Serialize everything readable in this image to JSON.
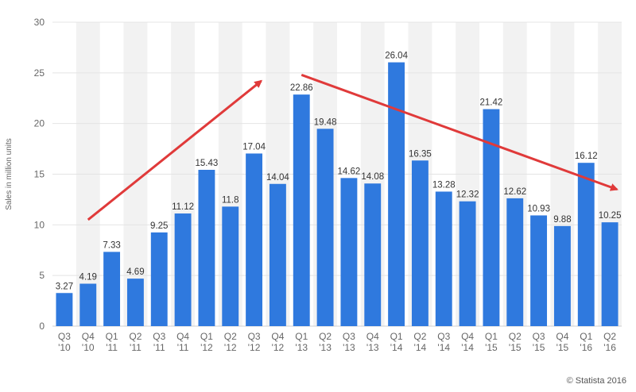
{
  "chart_data": {
    "type": "bar",
    "categories": [
      [
        "Q3",
        "'10"
      ],
      [
        "Q4",
        "'10"
      ],
      [
        "Q1",
        "'11"
      ],
      [
        "Q2",
        "'11"
      ],
      [
        "Q3",
        "'11"
      ],
      [
        "Q4",
        "'11"
      ],
      [
        "Q1",
        "'12"
      ],
      [
        "Q2",
        "'12"
      ],
      [
        "Q3",
        "'12"
      ],
      [
        "Q4",
        "'12"
      ],
      [
        "Q1",
        "'13"
      ],
      [
        "Q2",
        "'13"
      ],
      [
        "Q3",
        "'13"
      ],
      [
        "Q4",
        "'13"
      ],
      [
        "Q1",
        "'14"
      ],
      [
        "Q2",
        "'14"
      ],
      [
        "Q3",
        "'14"
      ],
      [
        "Q4",
        "'14"
      ],
      [
        "Q1",
        "'15"
      ],
      [
        "Q2",
        "'15"
      ],
      [
        "Q3",
        "'15"
      ],
      [
        "Q4",
        "'15"
      ],
      [
        "Q1",
        "'16"
      ],
      [
        "Q2",
        "'16"
      ]
    ],
    "values": [
      3.27,
      4.19,
      7.33,
      4.69,
      9.25,
      11.12,
      15.43,
      11.8,
      17.04,
      14.04,
      22.86,
      19.48,
      14.62,
      14.08,
      26.04,
      16.35,
      13.28,
      12.32,
      21.42,
      12.62,
      10.93,
      9.88,
      16.12,
      10.25
    ],
    "value_labels": [
      "3.27",
      "4.19",
      "7.33",
      "4.69",
      "9.25",
      "11.12",
      "15.43",
      "11.8",
      "17.04",
      "14.04",
      "22.86",
      "19.48",
      "14.62",
      "14.08",
      "26.04",
      "16.35",
      "13.28",
      "12.32",
      "21.42",
      "12.62",
      "10.93",
      "9.88",
      "16.12",
      "10.25"
    ],
    "ylabel": "Sales in million units",
    "ylim": [
      0,
      30
    ],
    "yticks": [
      "0",
      "5",
      "10",
      "15",
      "20",
      "25",
      "30"
    ],
    "grid": true,
    "bar_color": "#2f79de",
    "stripe_color": "#f2f2f2",
    "annotations": [
      {
        "type": "arrow",
        "color": "#e03a3a",
        "from": {
          "x": "Q4 '10",
          "y": 10.5
        },
        "to": {
          "x": "Q3 '12",
          "y": 24.2
        }
      },
      {
        "type": "arrow",
        "color": "#e03a3a",
        "from": {
          "x": "Q1 '13",
          "y": 24.8
        },
        "to": {
          "x": "Q2 '16",
          "y": 13.5
        }
      }
    ]
  },
  "credit": "© Statista 2016"
}
